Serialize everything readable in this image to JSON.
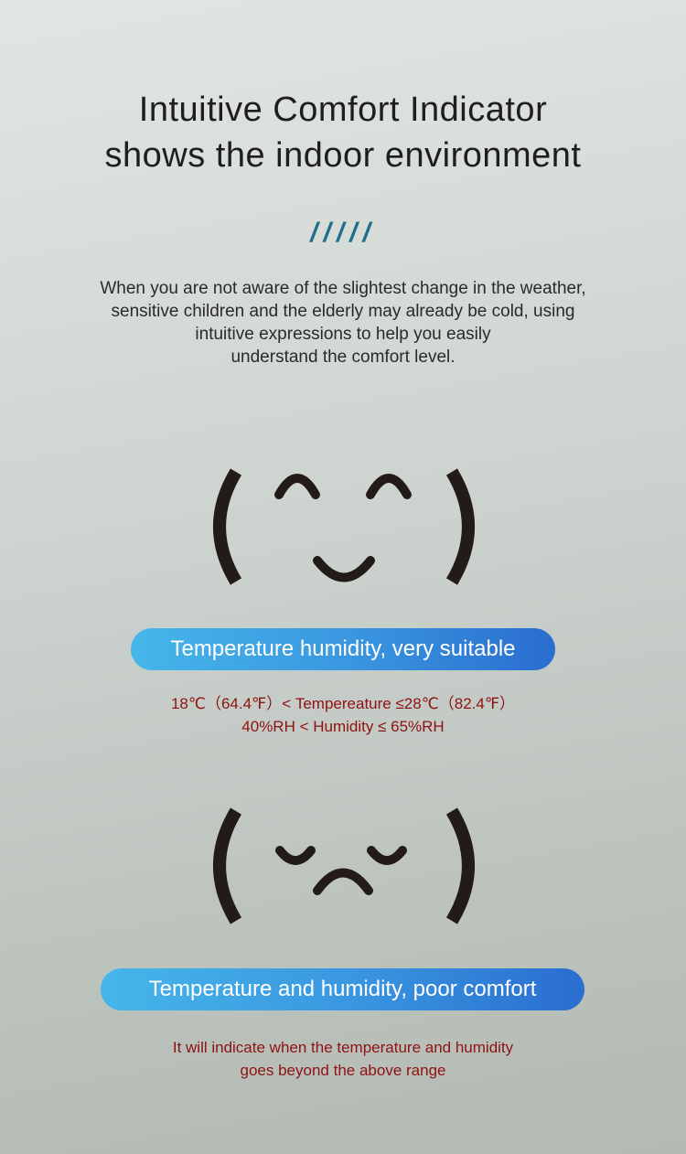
{
  "header": {
    "title_line1": "Intuitive Comfort Indicator",
    "title_line2": "shows the indoor environment",
    "divider": "/////"
  },
  "description": [
    "When you are not aware of the slightest change in the weather,",
    "sensitive children and the elderly may already be cold, using",
    "intuitive expressions to help you easily",
    "understand the comfort level."
  ],
  "states": [
    {
      "face": "happy-face-icon",
      "label": "Temperature humidity, very suitable",
      "details": [
        "18℃（64.4℉）< Tempereature ≤28℃（82.4℉）",
        "40%RH < Humidity ≤ 65%RH"
      ]
    },
    {
      "face": "sad-face-icon",
      "label": "Temperature and humidity, poor comfort",
      "details": [
        "It will indicate when the temperature and humidity",
        "goes beyond the above range"
      ]
    }
  ],
  "colors": {
    "pill_start": "#46b6ea",
    "pill_end": "#2a6dd0",
    "detail_text": "#8e1212",
    "divider": "#1f6f8f"
  }
}
